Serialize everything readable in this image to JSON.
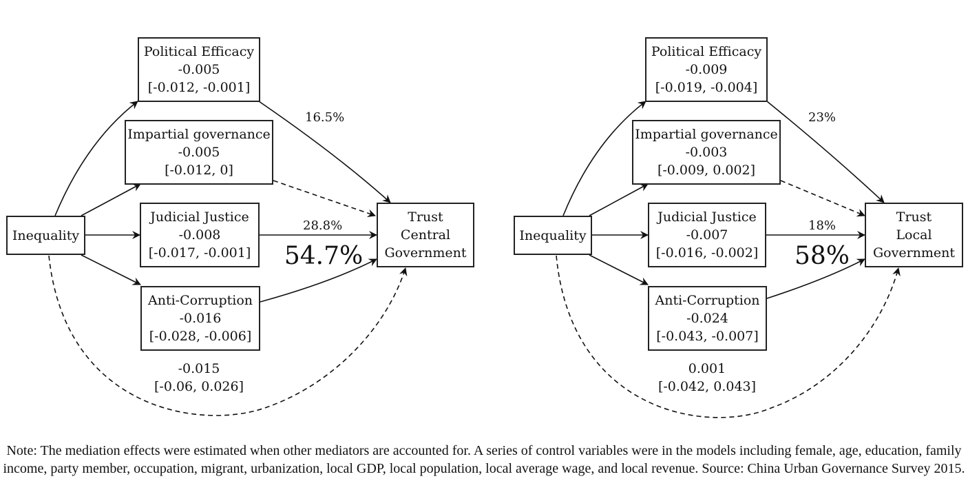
{
  "left_panel": {
    "source": "Inequality",
    "outcome": [
      "Trust",
      "Central",
      "Government"
    ],
    "mediators": [
      {
        "name": "Political Efficacy",
        "coef": "-0.005",
        "ci": "[-0.012, -0.001]"
      },
      {
        "name": "Impartial governance",
        "coef": "-0.005",
        "ci": "[-0.012, 0]"
      },
      {
        "name": "Judicial Justice",
        "coef": "-0.008",
        "ci": "[-0.017, -0.001]"
      },
      {
        "name": "Anti-Corruption",
        "coef": "-0.016",
        "ci": "[-0.028, -0.006]"
      }
    ],
    "pct_political": "16.5%",
    "pct_judicial": "28.8%",
    "total_pct": "54.7%",
    "direct_coef": "-0.015",
    "direct_ci": "[-0.06, 0.026]"
  },
  "right_panel": {
    "source": "Inequality",
    "outcome": [
      "Trust",
      "Local",
      "Government"
    ],
    "mediators": [
      {
        "name": "Political Efficacy",
        "coef": "-0.009",
        "ci": "[-0.019, -0.004]"
      },
      {
        "name": "Impartial governance",
        "coef": "-0.003",
        "ci": "[-0.009, 0.002]"
      },
      {
        "name": "Judicial Justice",
        "coef": "-0.007",
        "ci": "[-0.016, -0.002]"
      },
      {
        "name": "Anti-Corruption",
        "coef": "-0.024",
        "ci": "[-0.043, -0.007]"
      }
    ],
    "pct_political": "23%",
    "pct_judicial": "18%",
    "total_pct": "58%",
    "direct_coef": "0.001",
    "direct_ci": "[-0.042, 0.043]"
  },
  "note": "Note: The mediation effects were estimated when other mediators are accounted for. A series of control variables were in the models including female, age, education, family income, party member, occupation, migrant, urbanization, local GDP, local population, local average wage, and local revenue. Source: China Urban Governance Survey 2015."
}
